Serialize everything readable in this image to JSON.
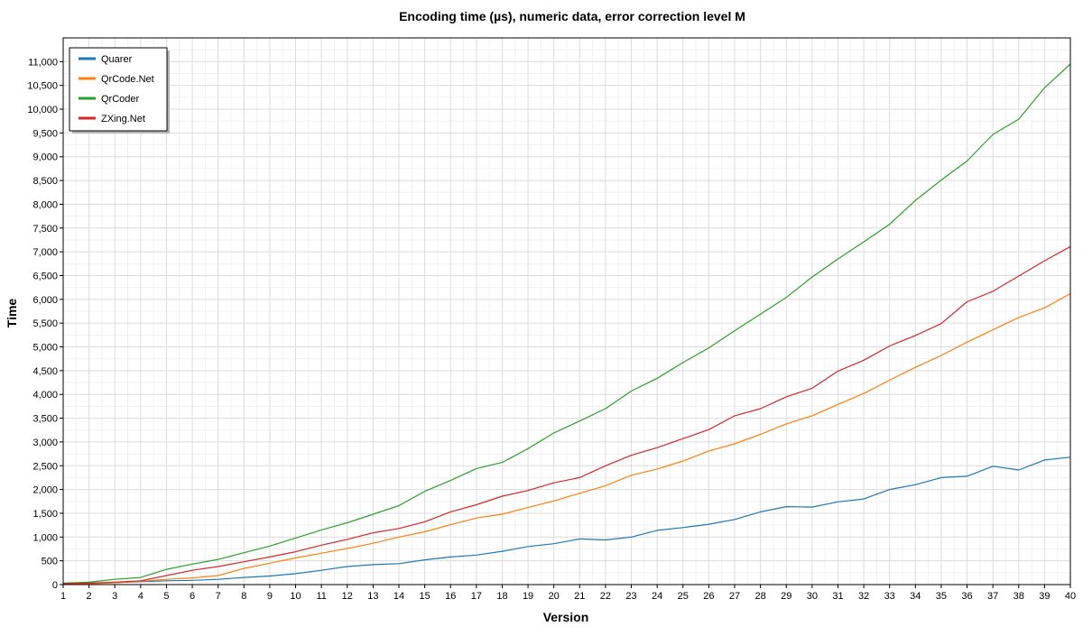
{
  "chart_data": {
    "type": "line",
    "title": "Encoding time (µs), numeric data, error correction level M",
    "xlabel": "Version",
    "ylabel": "Time",
    "xlim": [
      1,
      40
    ],
    "ylim": [
      0,
      11500
    ],
    "ytick_step": 500,
    "grid": true,
    "legend_position": "top-left",
    "x": [
      1,
      2,
      3,
      4,
      5,
      6,
      7,
      8,
      9,
      10,
      11,
      12,
      13,
      14,
      15,
      16,
      17,
      18,
      19,
      20,
      21,
      22,
      23,
      24,
      25,
      26,
      27,
      28,
      29,
      30,
      31,
      32,
      33,
      34,
      35,
      36,
      37,
      38,
      39,
      40
    ],
    "series": [
      {
        "name": "Quarer",
        "color": "#1f77b4",
        "values": [
          10,
          20,
          40,
          60,
          80,
          90,
          110,
          150,
          180,
          230,
          300,
          380,
          420,
          440,
          520,
          580,
          620,
          700,
          800,
          860,
          960,
          940,
          1000,
          1140,
          1200,
          1270,
          1370,
          1530,
          1640,
          1630,
          1740,
          1800,
          2000,
          2100,
          2250,
          2280,
          2490,
          2410,
          2620,
          2680
        ]
      },
      {
        "name": "QrCode.Net",
        "color": "#ff7f0e",
        "values": [
          10,
          20,
          40,
          70,
          110,
          140,
          190,
          340,
          450,
          560,
          660,
          760,
          870,
          1000,
          1110,
          1260,
          1400,
          1480,
          1620,
          1760,
          1920,
          2080,
          2300,
          2430,
          2600,
          2810,
          2960,
          3160,
          3380,
          3550,
          3790,
          4020,
          4300,
          4570,
          4820,
          5100,
          5360,
          5620,
          5820,
          6120
        ]
      },
      {
        "name": "QrCoder",
        "color": "#2ca02c",
        "values": [
          30,
          50,
          110,
          150,
          320,
          430,
          530,
          670,
          810,
          980,
          1150,
          1300,
          1480,
          1660,
          1960,
          2190,
          2440,
          2570,
          2860,
          3190,
          3440,
          3700,
          4070,
          4340,
          4670,
          4980,
          5340,
          5690,
          6040,
          6470,
          6850,
          7210,
          7580,
          8080,
          8510,
          8910,
          9470,
          9790,
          10450,
          10950
        ]
      },
      {
        "name": "ZXing.Net",
        "color": "#d62728",
        "values": [
          20,
          30,
          50,
          80,
          190,
          300,
          380,
          480,
          580,
          690,
          830,
          950,
          1090,
          1180,
          1320,
          1530,
          1680,
          1860,
          1980,
          2140,
          2250,
          2500,
          2720,
          2880,
          3070,
          3260,
          3550,
          3700,
          3950,
          4130,
          4490,
          4720,
          5020,
          5240,
          5490,
          5950,
          6170,
          6490,
          6810,
          7110
        ]
      }
    ]
  }
}
